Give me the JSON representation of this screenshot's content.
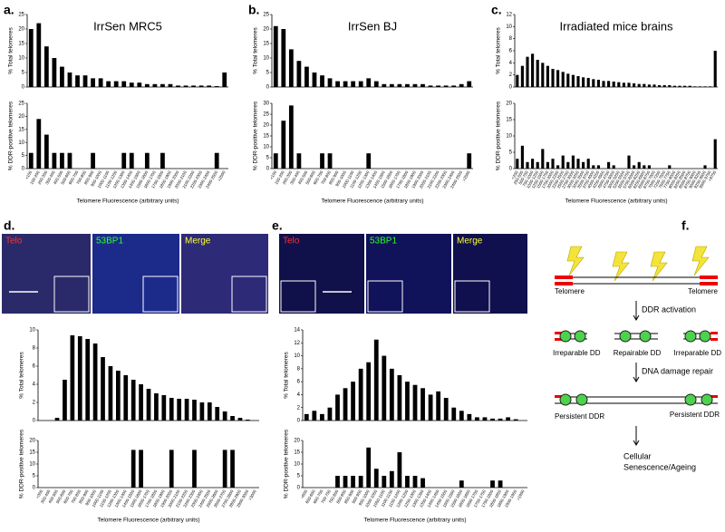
{
  "chart_data": [
    {
      "type": "bar",
      "panel": "a.",
      "title": "IrrSen MRC5",
      "ylabel": "% Total telomeres",
      "color": "#000000",
      "ylim": [
        0,
        25
      ],
      "yticks": [
        0,
        5,
        10,
        15,
        20,
        25
      ],
      "values": [
        20,
        22,
        14,
        10,
        7,
        5,
        4,
        4,
        3,
        3,
        2,
        2,
        2,
        1.5,
        1.5,
        1,
        1,
        1,
        1,
        0.5,
        0.5,
        0.5,
        0.5,
        0.5,
        0.3,
        5
      ]
    },
    {
      "type": "bar",
      "ylabel": "% DDR-positive telomeres",
      "xlabel": "Telomere Fluorescence (arbitrary units)",
      "color": "#000000",
      "ylim": [
        0,
        25
      ],
      "yticks": [
        0,
        5,
        10,
        15,
        20,
        25
      ],
      "categories": [
        "<100",
        "100-200",
        "200-300",
        "300-400",
        "400-500",
        "500-600",
        "600-700",
        "700-800",
        "800-900",
        "900-1000",
        "1000-1100",
        "1100-1200",
        "1200-1300",
        "1300-1400",
        "1400-1500",
        "1500-1600",
        "1600-1700",
        "1700-1800",
        "1800-1900",
        "1900-2000",
        "2000-2100",
        "2100-2200",
        "2200-2300",
        "2300-2400",
        "2400-2500",
        ">2500"
      ],
      "values": [
        6,
        19,
        13,
        6,
        6,
        6,
        0,
        0,
        6,
        0,
        0,
        0,
        6,
        6,
        0,
        6,
        0,
        6,
        0,
        0,
        0,
        0,
        0,
        0,
        6,
        0
      ]
    },
    {
      "type": "bar",
      "panel": "b.",
      "title": "IrrSen BJ",
      "ylabel": "% Total telomeres",
      "color": "#000000",
      "ylim": [
        0,
        25
      ],
      "yticks": [
        0,
        5,
        10,
        15,
        20,
        25
      ],
      "values": [
        21,
        20,
        13,
        9,
        7,
        5,
        4,
        3,
        2,
        2,
        2,
        2,
        3,
        2,
        1,
        1,
        1,
        1,
        1,
        1,
        0.5,
        0.5,
        0.5,
        0.5,
        1,
        2
      ]
    },
    {
      "type": "bar",
      "ylabel": "% DDR-positive telomeres",
      "xlabel": "Telomere Fluorescence (arbitrary units)",
      "color": "#000000",
      "ylim": [
        0,
        30
      ],
      "yticks": [
        0,
        5,
        10,
        15,
        20,
        25,
        30
      ],
      "categories": [
        "<100",
        "100-200",
        "200-300",
        "300-400",
        "400-500",
        "500-600",
        "600-700",
        "700-800",
        "800-900",
        "900-1000",
        "1000-1100",
        "1100-1200",
        "1200-1300",
        "1300-1400",
        "1400-1500",
        "1500-1600",
        "1600-1700",
        "1700-1800",
        "1800-1900",
        "1900-2000",
        "2000-2100",
        "2100-2200",
        "2200-2300",
        "2300-2400",
        "2400-2500",
        ">2500"
      ],
      "values": [
        7,
        22,
        29,
        7,
        0,
        0,
        7,
        7,
        0,
        0,
        0,
        0,
        7,
        0,
        0,
        0,
        0,
        0,
        0,
        0,
        0,
        0,
        0,
        0,
        0,
        7
      ]
    },
    {
      "type": "bar",
      "panel": "c.",
      "title": "Irradiated mice brains",
      "ylabel": "% Total telomeres",
      "color": "#000000",
      "ylim": [
        0,
        12
      ],
      "yticks": [
        0,
        2,
        4,
        6,
        8,
        10,
        12
      ],
      "values": [
        2,
        3.5,
        5,
        5.5,
        4.5,
        4,
        3.5,
        3,
        2.8,
        2.5,
        2.2,
        2,
        1.8,
        1.6,
        1.5,
        1.3,
        1.2,
        1,
        1,
        0.9,
        0.8,
        0.7,
        0.7,
        0.6,
        0.5,
        0.5,
        0.4,
        0.4,
        0.3,
        0.3,
        0.3,
        0.2,
        0.2,
        0.2,
        0.2,
        0.1,
        0.1,
        0.1,
        0.1,
        6
      ]
    },
    {
      "type": "bar",
      "ylabel": "% DDR-positive telomeres",
      "xlabel": "Telomere Fluorescence (arbitrary units)",
      "color": "#000000",
      "ylim": [
        0,
        20
      ],
      "yticks": [
        0,
        5,
        10,
        15,
        20
      ],
      "categories": [
        "<250",
        "250-500",
        "500-750",
        "750-1000",
        "1000-1250",
        "1250-1500",
        "1500-1750",
        "1750-2000",
        "2000-2250",
        "2250-2500",
        "2500-2750",
        "2750-3000",
        "3000-3250",
        "3250-3500",
        "3500-3750",
        "3750-4000",
        "4000-4250",
        "4250-4500",
        "4500-4750",
        "4750-5000",
        "5000-5250",
        "5250-5500",
        "5500-5750",
        "5750-6000",
        "6000-6250",
        "6250-6500",
        "6500-6750",
        "6750-7000",
        "7000-7250",
        "7250-7500",
        "7500-7750",
        "7750-8000",
        "8000-8250",
        "8250-8500",
        "8500-8750",
        "8750-9000",
        "9000-9250",
        "9250-9500",
        "9500-9750",
        ">9750"
      ],
      "values": [
        3,
        7,
        2,
        3,
        2,
        6,
        2,
        3,
        1,
        4,
        2,
        4,
        3,
        2,
        3,
        1,
        1,
        0,
        2,
        1,
        0,
        0,
        4,
        1,
        2,
        1,
        1,
        0,
        0,
        0,
        1,
        0,
        0,
        0,
        0,
        0,
        0,
        1,
        0,
        9
      ]
    },
    {
      "type": "bar",
      "ylabel": "% Total telomeres",
      "color": "#000000",
      "ylim": [
        0,
        10
      ],
      "yticks": [
        0,
        2,
        4,
        6,
        8,
        10
      ],
      "values": [
        0,
        0,
        0.3,
        4.5,
        9.4,
        9.3,
        9,
        8.5,
        7,
        6,
        5.5,
        5,
        4.5,
        4,
        3.5,
        3,
        2.8,
        2.5,
        2.4,
        2.4,
        2.3,
        2,
        2,
        1.5,
        1,
        0.5,
        0.3,
        0.1,
        0
      ]
    },
    {
      "type": "bar",
      "ylabel": "% DDR-positive telomeres",
      "xlabel": "Telomere Fluorescence (arbitrary units)",
      "color": "#000000",
      "ylim": [
        0,
        20
      ],
      "yticks": [
        0,
        5,
        10,
        15,
        20
      ],
      "categories": [
        "<300",
        "300-400",
        "400-500",
        "500-600",
        "600-700",
        "700-800",
        "800-900",
        "900-1000",
        "1000-1100",
        "1100-1200",
        "1200-1300",
        "1300-1400",
        "1400-1500",
        "1500-1600",
        "1600-1700",
        "1700-1800",
        "1800-1900",
        "1900-2000",
        "2000-2100",
        "2100-2200",
        "2200-2300",
        "2300-2400",
        "2400-2500",
        "2500-2600",
        "2600-2700",
        "2700-2800",
        "2800-2900",
        "2900-3000",
        ">3000"
      ],
      "values": [
        0,
        0,
        0,
        0,
        0,
        0,
        0,
        0,
        0,
        0,
        0,
        0,
        16,
        16,
        0,
        0,
        0,
        16,
        0,
        0,
        16,
        0,
        0,
        0,
        16,
        16,
        0,
        0,
        0
      ]
    },
    {
      "type": "bar",
      "ylabel": "% Total telomeres",
      "color": "#000000",
      "ylim": [
        0,
        14
      ],
      "yticks": [
        0,
        2,
        4,
        6,
        8,
        10,
        12,
        14
      ],
      "values": [
        1,
        1.5,
        1,
        2,
        4,
        5,
        6,
        8,
        9,
        12.5,
        10,
        8,
        7,
        6,
        5.5,
        5,
        4,
        4.5,
        3.5,
        2,
        1.5,
        1,
        0.5,
        0.5,
        0.3,
        0.3,
        0.5,
        0.2,
        0
      ]
    },
    {
      "type": "bar",
      "ylabel": "% DDR-positive telomeres",
      "xlabel": "Telomere Fluorescence (arbitrary units)",
      "color": "#000000",
      "ylim": [
        0,
        20
      ],
      "yticks": [
        0,
        5,
        10,
        15,
        20
      ],
      "categories": [
        "<600",
        "600-650",
        "650-700",
        "700-750",
        "750-800",
        "800-850",
        "850-900",
        "900-950",
        "950-1000",
        "1000-1050",
        "1050-1100",
        "1100-1150",
        "1150-1200",
        "1200-1250",
        "1250-1300",
        "1300-1350",
        "1350-1400",
        "1400-1450",
        "1450-1500",
        "1500-1550",
        "1550-1600",
        "1600-1650",
        "1650-1700",
        "1700-1750",
        "1750-1800",
        "1800-1850",
        "1850-1900",
        "1900-1950",
        ">1950"
      ],
      "values": [
        0,
        0,
        0,
        0,
        5,
        5,
        5,
        5,
        17,
        8,
        5,
        7,
        15,
        5,
        5,
        4,
        0,
        0,
        0,
        0,
        3,
        0,
        0,
        0,
        3,
        3,
        0,
        0,
        0
      ]
    }
  ],
  "panel_d": {
    "label": "d.",
    "channels": [
      "Telo",
      "53BP1",
      "Merge"
    ]
  },
  "panel_e": {
    "label": "e.",
    "channels": [
      "Telo",
      "53BP1",
      "Merge"
    ]
  },
  "panel_f": {
    "label": "f.",
    "telomere_left": "Telomere",
    "telomere_right": "Telomere",
    "step1": "DDR activation",
    "dd_types": [
      "Irreparable DD",
      "Repairable DD",
      "Irreparable DD"
    ],
    "step2": "DNA damage repair",
    "persistent_left": "Persistent DDR",
    "persistent_right": "Persistent DDR",
    "outcome": [
      "Cellular",
      "Senescence/Ageing"
    ]
  }
}
